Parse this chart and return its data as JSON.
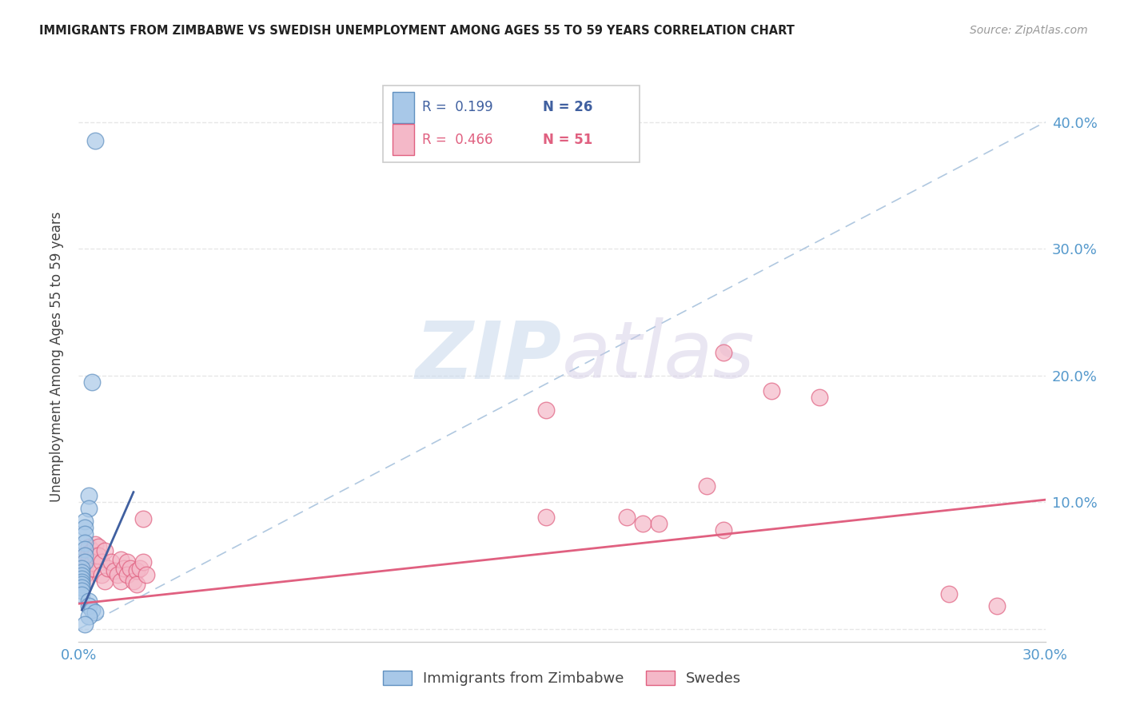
{
  "title": "IMMIGRANTS FROM ZIMBABWE VS SWEDISH UNEMPLOYMENT AMONG AGES 55 TO 59 YEARS CORRELATION CHART",
  "source": "Source: ZipAtlas.com",
  "ylabel": "Unemployment Among Ages 55 to 59 years",
  "xlim": [
    0.0,
    0.3
  ],
  "ylim": [
    -0.01,
    0.44
  ],
  "xticks": [
    0.0,
    0.05,
    0.1,
    0.15,
    0.2,
    0.25,
    0.3
  ],
  "yticks": [
    0.0,
    0.1,
    0.2,
    0.3,
    0.4
  ],
  "xtick_labels": [
    "0.0%",
    "",
    "",
    "",
    "",
    "",
    "30.0%"
  ],
  "ytick_labels_right": [
    "",
    "10.0%",
    "20.0%",
    "30.0%",
    "40.0%"
  ],
  "blue_color": "#a8c8e8",
  "pink_color": "#f4b8c8",
  "blue_edge_color": "#6090c0",
  "pink_edge_color": "#e06080",
  "blue_line_color": "#4060a0",
  "pink_line_color": "#e06080",
  "dashed_line_color": "#b0c8e0",
  "blue_scatter": [
    [
      0.005,
      0.385
    ],
    [
      0.004,
      0.195
    ],
    [
      0.003,
      0.105
    ],
    [
      0.003,
      0.095
    ],
    [
      0.002,
      0.085
    ],
    [
      0.002,
      0.08
    ],
    [
      0.002,
      0.075
    ],
    [
      0.002,
      0.068
    ],
    [
      0.002,
      0.063
    ],
    [
      0.002,
      0.058
    ],
    [
      0.002,
      0.053
    ],
    [
      0.001,
      0.048
    ],
    [
      0.001,
      0.045
    ],
    [
      0.001,
      0.042
    ],
    [
      0.001,
      0.04
    ],
    [
      0.001,
      0.037
    ],
    [
      0.001,
      0.035
    ],
    [
      0.001,
      0.033
    ],
    [
      0.001,
      0.03
    ],
    [
      0.001,
      0.027
    ],
    [
      0.003,
      0.022
    ],
    [
      0.003,
      0.018
    ],
    [
      0.004,
      0.015
    ],
    [
      0.005,
      0.013
    ],
    [
      0.003,
      0.01
    ],
    [
      0.002,
      0.004
    ]
  ],
  "pink_scatter": [
    [
      0.001,
      0.048
    ],
    [
      0.001,
      0.043
    ],
    [
      0.001,
      0.04
    ],
    [
      0.002,
      0.058
    ],
    [
      0.002,
      0.053
    ],
    [
      0.002,
      0.048
    ],
    [
      0.002,
      0.043
    ],
    [
      0.002,
      0.038
    ],
    [
      0.003,
      0.065
    ],
    [
      0.003,
      0.06
    ],
    [
      0.003,
      0.055
    ],
    [
      0.004,
      0.062
    ],
    [
      0.004,
      0.052
    ],
    [
      0.004,
      0.048
    ],
    [
      0.005,
      0.067
    ],
    [
      0.005,
      0.058
    ],
    [
      0.006,
      0.065
    ],
    [
      0.006,
      0.058
    ],
    [
      0.007,
      0.053
    ],
    [
      0.007,
      0.043
    ],
    [
      0.008,
      0.062
    ],
    [
      0.008,
      0.038
    ],
    [
      0.009,
      0.048
    ],
    [
      0.01,
      0.053
    ],
    [
      0.011,
      0.046
    ],
    [
      0.012,
      0.043
    ],
    [
      0.013,
      0.038
    ],
    [
      0.013,
      0.055
    ],
    [
      0.014,
      0.048
    ],
    [
      0.015,
      0.053
    ],
    [
      0.015,
      0.043
    ],
    [
      0.016,
      0.048
    ],
    [
      0.017,
      0.038
    ],
    [
      0.018,
      0.046
    ],
    [
      0.018,
      0.035
    ],
    [
      0.019,
      0.048
    ],
    [
      0.02,
      0.087
    ],
    [
      0.02,
      0.053
    ],
    [
      0.021,
      0.043
    ],
    [
      0.145,
      0.173
    ],
    [
      0.145,
      0.088
    ],
    [
      0.17,
      0.088
    ],
    [
      0.175,
      0.083
    ],
    [
      0.18,
      0.083
    ],
    [
      0.195,
      0.113
    ],
    [
      0.2,
      0.078
    ],
    [
      0.2,
      0.218
    ],
    [
      0.215,
      0.188
    ],
    [
      0.23,
      0.183
    ],
    [
      0.27,
      0.028
    ],
    [
      0.285,
      0.018
    ]
  ],
  "blue_trend_x": [
    0.001,
    0.017
  ],
  "blue_trend_y": [
    0.015,
    0.108
  ],
  "pink_trend_x": [
    0.0,
    0.3
  ],
  "pink_trend_y": [
    0.02,
    0.102
  ],
  "dashed_line_x": [
    0.0,
    0.3
  ],
  "dashed_line_y": [
    0.0,
    0.4
  ],
  "watermark_zip": "ZIP",
  "watermark_atlas": "atlas",
  "grid_color": "#e0e0e0",
  "background_color": "#ffffff"
}
